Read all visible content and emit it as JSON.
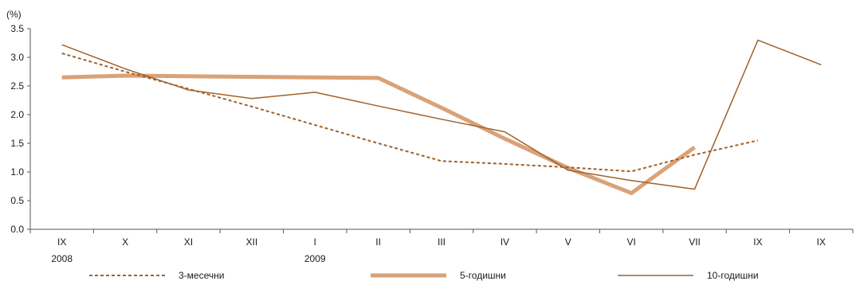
{
  "chart_data": {
    "type": "line",
    "ylabel": "(%)",
    "ylim": [
      0,
      3.5
    ],
    "yticks": [
      "0.0",
      "0.5",
      "1.0",
      "1.5",
      "2.0",
      "2.5",
      "3.0",
      "3.5"
    ],
    "categories": [
      "IX",
      "X",
      "XI",
      "XII",
      "I",
      "II",
      "III",
      "IV",
      "V",
      "VI",
      "VII",
      "IX",
      "IX"
    ],
    "year_labels": [
      {
        "index": 0,
        "label": "2008"
      },
      {
        "index": 4,
        "label": "2009"
      }
    ],
    "series": [
      {
        "name": "3-месечни",
        "color": "#a0622a",
        "style": "dashed",
        "values": [
          3.07,
          2.75,
          2.45,
          2.14,
          1.82,
          1.5,
          1.19,
          1.14,
          1.08,
          1.01,
          1.3,
          1.55,
          null
        ]
      },
      {
        "name": "5-годишни",
        "color": "#d9a278",
        "style": "thick",
        "values": [
          2.65,
          2.68,
          2.67,
          2.66,
          2.65,
          2.64,
          2.12,
          1.58,
          1.07,
          0.63,
          1.43,
          null,
          null
        ]
      },
      {
        "name": "10-годишни",
        "color": "#a0622a",
        "style": "solid",
        "values": [
          3.22,
          2.8,
          2.43,
          2.28,
          2.39,
          2.15,
          1.92,
          1.7,
          1.03,
          0.85,
          0.7,
          3.3,
          2.87
        ]
      }
    ],
    "grid": false,
    "legend": "bottom"
  }
}
